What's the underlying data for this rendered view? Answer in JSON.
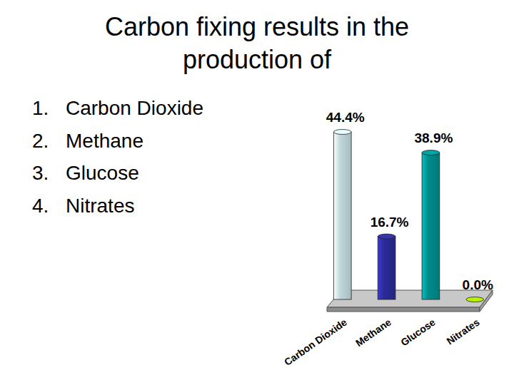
{
  "chart_data": {
    "type": "bar",
    "title": "Carbon fixing results in the production of",
    "annotations": [
      "1.",
      "2.",
      "3.",
      "4."
    ],
    "categories": [
      "Carbon Dioxide",
      "Methane",
      "Glucose",
      "Nitrates"
    ],
    "values": [
      44.4,
      16.7,
      38.9,
      0.0
    ],
    "value_labels": [
      "44.4%",
      "16.7%",
      "38.9%",
      "0.0%"
    ],
    "colors": [
      "#c0d8dc",
      "#2b2b96",
      "#008b8b",
      "#99cc00"
    ],
    "data_labels": true,
    "tick_labels": "x",
    "grid": false
  }
}
